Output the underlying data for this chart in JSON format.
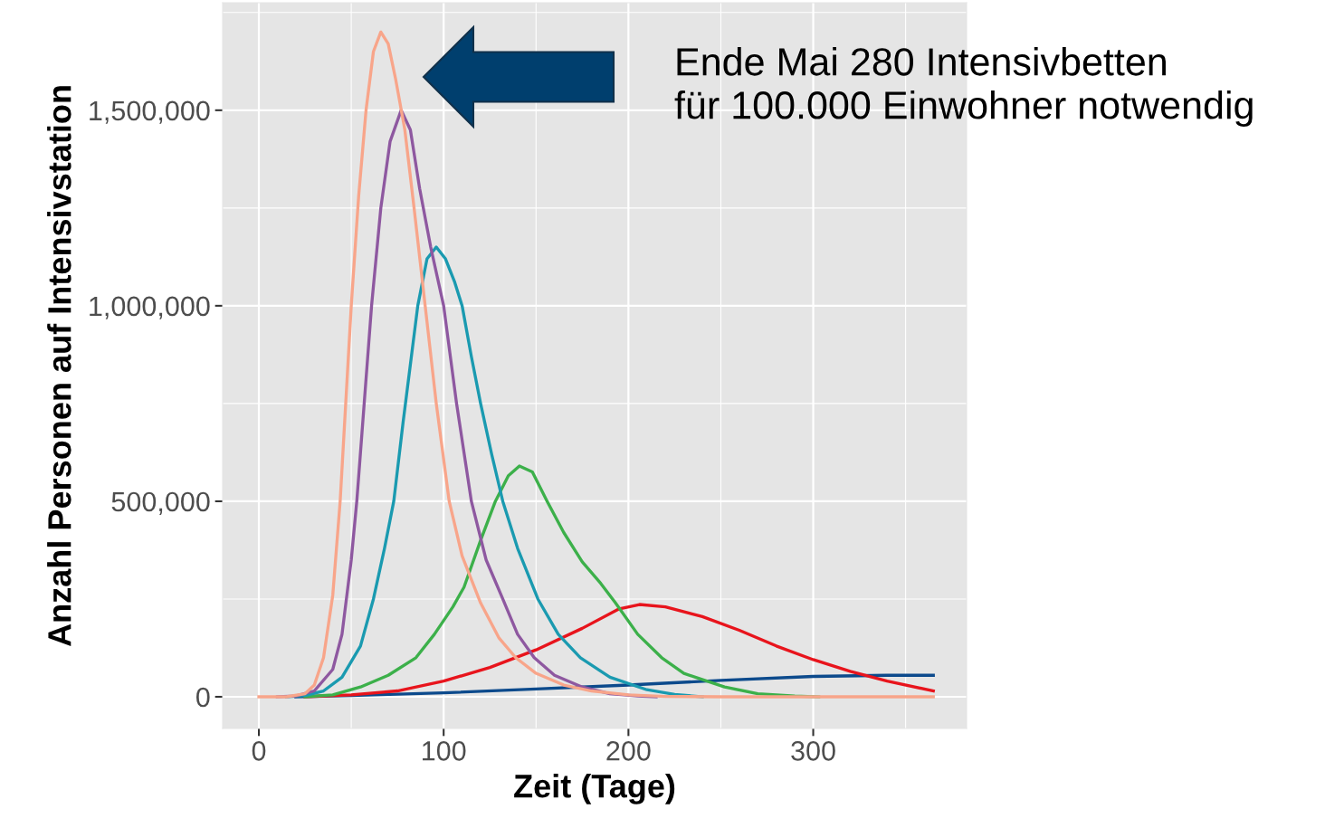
{
  "chart_data": {
    "type": "line",
    "xlabel": "Zeit (Tage)",
    "ylabel": "Anzahl Personen auf Intensivstation",
    "annotations": [
      "Ende Mai 280 Intensivbetten\nfür 100.000 Einwohner notwendig"
    ],
    "xlim": [
      -19.6,
      383
    ],
    "ylim": [
      -81000,
      1775000
    ],
    "xticks": [
      0,
      100,
      200,
      300
    ],
    "yticks": [
      0,
      {
        "value": 500000,
        "label": "500,000"
      },
      {
        "value": 1000000,
        "label": "1,000,000"
      },
      {
        "value": 1500000,
        "label": "1,500,000"
      }
    ],
    "grid": true,
    "marker": "none",
    "line_style": "solid",
    "series": [
      {
        "color": "#0c4a8c",
        "x": [
          20,
          50,
          100,
          150,
          200,
          250,
          300,
          340,
          365
        ],
        "values": [
          0,
          3000,
          10000,
          20000,
          30000,
          42000,
          52000,
          55000,
          55000
        ]
      },
      {
        "color": "#e8141c",
        "x": [
          25,
          50,
          75,
          100,
          125,
          150,
          175,
          195,
          206,
          220,
          240,
          260,
          280,
          300,
          320,
          340,
          365
        ],
        "values": [
          0,
          5000,
          15000,
          40000,
          75000,
          120000,
          175000,
          225000,
          236000,
          230000,
          205000,
          170000,
          130000,
          95000,
          65000,
          40000,
          15000
        ]
      },
      {
        "color": "#3cb04a",
        "x": [
          25,
          40,
          55,
          70,
          85,
          95,
          105,
          111,
          120,
          128,
          135,
          141,
          148,
          156,
          165,
          175,
          185,
          193,
          205,
          218,
          230,
          252,
          270,
          290,
          303
        ],
        "values": [
          0,
          5000,
          25000,
          55000,
          100000,
          160000,
          230000,
          280000,
          400000,
          500000,
          565000,
          590000,
          575000,
          500000,
          420000,
          345000,
          290000,
          240000,
          160000,
          100000,
          60000,
          25000,
          8000,
          2000,
          0
        ]
      },
      {
        "color": "#1a9ab0",
        "x": [
          15,
          25,
          35,
          45,
          55,
          62,
          68,
          73,
          78,
          82,
          86,
          91,
          96,
          101,
          106,
          110,
          115,
          120,
          126,
          132,
          140,
          151,
          162,
          174,
          190,
          210,
          225,
          240
        ],
        "values": [
          0,
          3000,
          15000,
          50000,
          130000,
          250000,
          380000,
          500000,
          700000,
          850000,
          1000000,
          1120000,
          1150000,
          1120000,
          1060000,
          1000000,
          870000,
          750000,
          620000,
          500000,
          380000,
          250000,
          160000,
          100000,
          50000,
          18000,
          6000,
          0
        ]
      },
      {
        "color": "#8e58a0",
        "x": [
          10,
          20,
          30,
          40,
          45,
          50,
          53,
          57,
          61,
          66,
          71,
          77,
          82,
          87,
          93,
          100,
          107,
          115,
          123,
          132,
          140,
          149,
          160,
          175,
          190,
          205,
          215
        ],
        "values": [
          0,
          2000,
          15000,
          70000,
          160000,
          350000,
          500000,
          750000,
          1000000,
          1250000,
          1420000,
          1500000,
          1450000,
          1300000,
          1150000,
          1000000,
          750000,
          500000,
          350000,
          250000,
          160000,
          100000,
          55000,
          25000,
          8000,
          2000,
          0
        ]
      },
      {
        "color": "#f8a58a",
        "x": [
          0,
          15,
          25,
          30,
          35,
          40,
          44,
          47,
          50,
          54,
          58,
          62,
          66,
          70,
          74,
          79,
          84,
          90,
          96,
          103,
          110,
          120,
          130,
          139,
          150,
          165,
          180,
          200,
          220,
          250,
          365
        ],
        "values": [
          0,
          0,
          8000,
          30000,
          100000,
          260000,
          500000,
          750000,
          1000000,
          1280000,
          1500000,
          1650000,
          1700000,
          1670000,
          1580000,
          1450000,
          1250000,
          1000000,
          750000,
          500000,
          360000,
          240000,
          150000,
          100000,
          60000,
          30000,
          15000,
          5000,
          1000,
          0,
          0
        ]
      }
    ]
  }
}
